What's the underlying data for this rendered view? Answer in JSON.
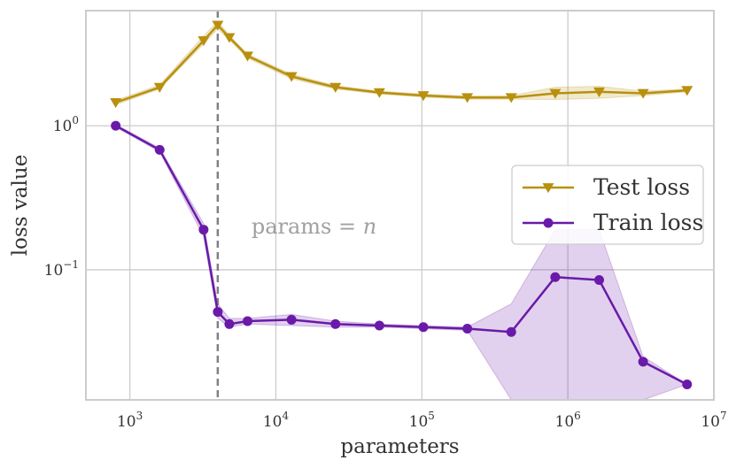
{
  "chart_data": {
    "type": "line",
    "title": "",
    "xlabel": "parameters",
    "ylabel": "loss value",
    "xscale": "log",
    "yscale": "log",
    "xlim": [
      500,
      10000000
    ],
    "ylim": [
      0.0125,
      6.3
    ],
    "grid": true,
    "x_ticks": [
      {
        "value": 1000,
        "base": "10",
        "exp": "3"
      },
      {
        "value": 10000,
        "base": "10",
        "exp": "4"
      },
      {
        "value": 100000,
        "base": "10",
        "exp": "5"
      },
      {
        "value": 1000000,
        "base": "10",
        "exp": "6"
      },
      {
        "value": 10000000,
        "base": "10",
        "exp": "7"
      }
    ],
    "y_ticks": [
      {
        "value": 1,
        "base": "10",
        "exp": "0"
      },
      {
        "value": 0.1,
        "base": "10",
        "exp": "−1"
      }
    ],
    "vline": {
      "x": 4000,
      "style": "dashed",
      "color": "#808080"
    },
    "annotation": {
      "text_left": "params = ",
      "text_var": "n",
      "x": 6800,
      "y": 0.2
    },
    "legend_position": "center-right",
    "series": [
      {
        "name": "Test loss",
        "color": "#b8900d",
        "marker": "triangle-down",
        "x": [
          800,
          1600,
          3200,
          4000,
          4800,
          6400,
          12800,
          25600,
          51200,
          102400,
          204800,
          409600,
          819200,
          1638400,
          3276800,
          6553600
        ],
        "y": [
          1.45,
          1.85,
          3.9,
          5.0,
          4.1,
          3.05,
          2.2,
          1.85,
          1.7,
          1.62,
          1.57,
          1.57,
          1.68,
          1.72,
          1.68,
          1.76
        ],
        "band_low": [
          1.4,
          1.8,
          3.7,
          4.7,
          3.95,
          2.95,
          2.12,
          1.8,
          1.66,
          1.58,
          1.53,
          1.53,
          1.52,
          1.55,
          1.62,
          1.72
        ],
        "band_high": [
          1.5,
          1.92,
          4.2,
          5.3,
          4.25,
          3.15,
          2.28,
          1.9,
          1.74,
          1.66,
          1.61,
          1.62,
          1.85,
          1.88,
          1.74,
          1.8
        ]
      },
      {
        "name": "Train loss",
        "color": "#6a1aa8",
        "marker": "circle",
        "x": [
          800,
          1600,
          3200,
          4000,
          4800,
          6400,
          12800,
          25600,
          51200,
          102400,
          204800,
          409600,
          819200,
          1638400,
          3276800,
          6553600
        ],
        "y": [
          1.0,
          0.68,
          0.19,
          0.051,
          0.042,
          0.044,
          0.045,
          0.042,
          0.041,
          0.04,
          0.039,
          0.037,
          0.089,
          0.085,
          0.023,
          0.016
        ],
        "band_low": [
          0.98,
          0.66,
          0.17,
          0.046,
          0.04,
          0.042,
          0.041,
          0.04,
          0.04,
          0.039,
          0.038,
          0.0125,
          0.0125,
          0.0125,
          0.0125,
          0.016
        ],
        "band_high": [
          1.02,
          0.7,
          0.21,
          0.058,
          0.046,
          0.046,
          0.049,
          0.044,
          0.042,
          0.041,
          0.04,
          0.058,
          0.19,
          0.19,
          0.025,
          0.016
        ]
      }
    ]
  }
}
